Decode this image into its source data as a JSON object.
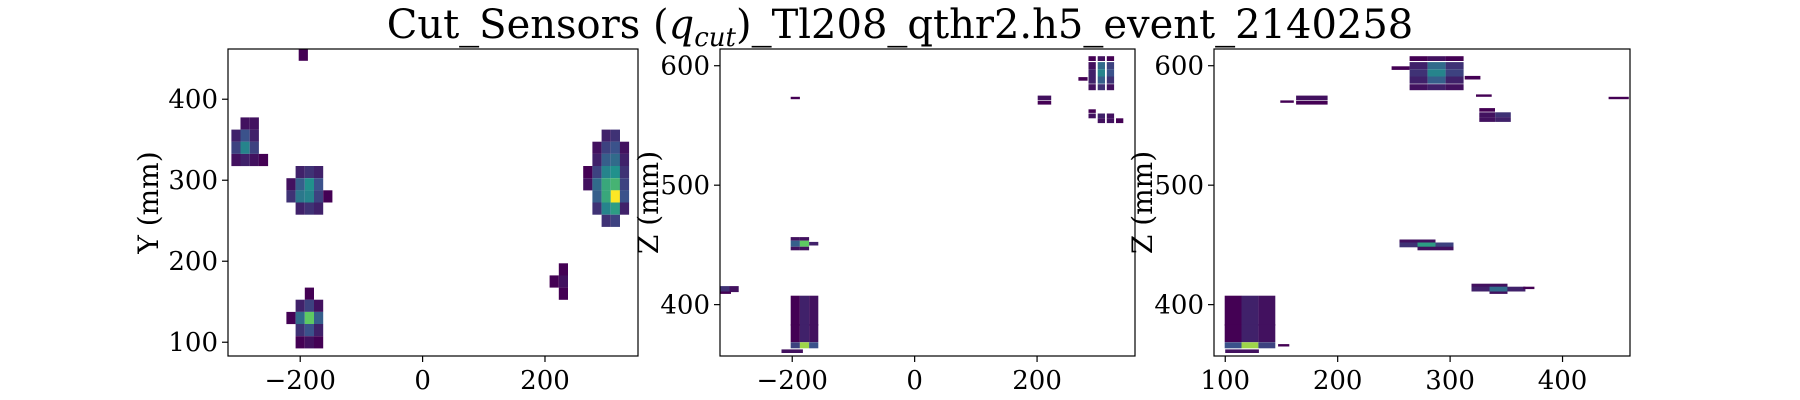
{
  "figure": {
    "title": "Cut_Sensors (q_cut)_Tl208_qthr2.h5_event_2140258",
    "title_parts": {
      "main_a": "Cut_Sensors (",
      "italic_q": "q",
      "sub_cut": "cut",
      "main_b": ")_Tl208_qthr2.h5_event_2140258"
    }
  },
  "colormap": [
    "#440154",
    "#3b528b",
    "#21918c",
    "#5ec962",
    "#fde725"
  ],
  "chart_data": [
    {
      "type": "heatmap",
      "xlabel": "",
      "ylabel": "Y (mm)",
      "xlim": [
        -318,
        352
      ],
      "ylim": [
        83,
        462
      ],
      "xticks": [
        -200,
        0,
        200
      ],
      "yticks": [
        100,
        200,
        300,
        400
      ],
      "cell_w": 15,
      "cell_h": 15,
      "cells": [
        {
          "x": -195,
          "y": 455,
          "v": 0.0
        },
        {
          "x": -290,
          "y": 370,
          "v": 0.05
        },
        {
          "x": -275,
          "y": 370,
          "v": 0.05
        },
        {
          "x": -305,
          "y": 355,
          "v": 0.1
        },
        {
          "x": -290,
          "y": 355,
          "v": 0.25
        },
        {
          "x": -275,
          "y": 355,
          "v": 0.1
        },
        {
          "x": -305,
          "y": 340,
          "v": 0.2
        },
        {
          "x": -290,
          "y": 340,
          "v": 0.45
        },
        {
          "x": -275,
          "y": 340,
          "v": 0.2
        },
        {
          "x": -305,
          "y": 325,
          "v": 0.05
        },
        {
          "x": -290,
          "y": 325,
          "v": 0.1
        },
        {
          "x": -275,
          "y": 325,
          "v": 0.05
        },
        {
          "x": -260,
          "y": 325,
          "v": 0.0
        },
        {
          "x": -200,
          "y": 310,
          "v": 0.1
        },
        {
          "x": -185,
          "y": 310,
          "v": 0.15
        },
        {
          "x": -170,
          "y": 310,
          "v": 0.1
        },
        {
          "x": -215,
          "y": 295,
          "v": 0.05
        },
        {
          "x": -200,
          "y": 295,
          "v": 0.3
        },
        {
          "x": -185,
          "y": 295,
          "v": 0.5
        },
        {
          "x": -170,
          "y": 295,
          "v": 0.25
        },
        {
          "x": -215,
          "y": 280,
          "v": 0.15
        },
        {
          "x": -200,
          "y": 280,
          "v": 0.4
        },
        {
          "x": -185,
          "y": 280,
          "v": 0.45
        },
        {
          "x": -170,
          "y": 280,
          "v": 0.2
        },
        {
          "x": -155,
          "y": 280,
          "v": 0.0
        },
        {
          "x": -200,
          "y": 265,
          "v": 0.1
        },
        {
          "x": -185,
          "y": 265,
          "v": 0.15
        },
        {
          "x": -170,
          "y": 265,
          "v": 0.1
        },
        {
          "x": -185,
          "y": 160,
          "v": 0.0
        },
        {
          "x": -200,
          "y": 145,
          "v": 0.1
        },
        {
          "x": -185,
          "y": 145,
          "v": 0.2
        },
        {
          "x": -170,
          "y": 145,
          "v": 0.05
        },
        {
          "x": -215,
          "y": 130,
          "v": 0.0
        },
        {
          "x": -200,
          "y": 130,
          "v": 0.35
        },
        {
          "x": -185,
          "y": 130,
          "v": 0.75
        },
        {
          "x": -170,
          "y": 130,
          "v": 0.3
        },
        {
          "x": -200,
          "y": 115,
          "v": 0.15
        },
        {
          "x": -185,
          "y": 115,
          "v": 0.25
        },
        {
          "x": -170,
          "y": 115,
          "v": 0.1
        },
        {
          "x": -200,
          "y": 100,
          "v": 0.0
        },
        {
          "x": -185,
          "y": 100,
          "v": 0.05
        },
        {
          "x": -170,
          "y": 100,
          "v": 0.0
        },
        {
          "x": 230,
          "y": 190,
          "v": 0.0
        },
        {
          "x": 230,
          "y": 175,
          "v": 0.05
        },
        {
          "x": 215,
          "y": 175,
          "v": 0.0
        },
        {
          "x": 230,
          "y": 160,
          "v": 0.0
        },
        {
          "x": 300,
          "y": 355,
          "v": 0.1
        },
        {
          "x": 315,
          "y": 355,
          "v": 0.15
        },
        {
          "x": 285,
          "y": 340,
          "v": 0.05
        },
        {
          "x": 300,
          "y": 340,
          "v": 0.2
        },
        {
          "x": 315,
          "y": 340,
          "v": 0.25
        },
        {
          "x": 330,
          "y": 340,
          "v": 0.05
        },
        {
          "x": 285,
          "y": 325,
          "v": 0.1
        },
        {
          "x": 300,
          "y": 325,
          "v": 0.3
        },
        {
          "x": 315,
          "y": 325,
          "v": 0.35
        },
        {
          "x": 330,
          "y": 325,
          "v": 0.1
        },
        {
          "x": 270,
          "y": 310,
          "v": 0.0
        },
        {
          "x": 285,
          "y": 310,
          "v": 0.2
        },
        {
          "x": 300,
          "y": 310,
          "v": 0.45
        },
        {
          "x": 315,
          "y": 310,
          "v": 0.5
        },
        {
          "x": 330,
          "y": 310,
          "v": 0.15
        },
        {
          "x": 270,
          "y": 295,
          "v": 0.05
        },
        {
          "x": 285,
          "y": 295,
          "v": 0.35
        },
        {
          "x": 300,
          "y": 295,
          "v": 0.6
        },
        {
          "x": 315,
          "y": 295,
          "v": 0.65
        },
        {
          "x": 330,
          "y": 295,
          "v": 0.2
        },
        {
          "x": 285,
          "y": 280,
          "v": 0.3
        },
        {
          "x": 300,
          "y": 280,
          "v": 0.6
        },
        {
          "x": 315,
          "y": 280,
          "v": 1.0
        },
        {
          "x": 330,
          "y": 280,
          "v": 0.25
        },
        {
          "x": 285,
          "y": 265,
          "v": 0.15
        },
        {
          "x": 300,
          "y": 265,
          "v": 0.45
        },
        {
          "x": 315,
          "y": 265,
          "v": 0.55
        },
        {
          "x": 330,
          "y": 265,
          "v": 0.1
        },
        {
          "x": 300,
          "y": 250,
          "v": 0.15
        },
        {
          "x": 315,
          "y": 250,
          "v": 0.2
        }
      ]
    },
    {
      "type": "heatmap",
      "xlabel": "",
      "ylabel": "Z (mm)",
      "xlim": [
        -318,
        360
      ],
      "ylim": [
        357,
        614
      ],
      "xticks": [
        -200,
        0,
        200
      ],
      "yticks": [
        400,
        500,
        600
      ],
      "cell_w": 15,
      "cell_h": 5,
      "cells": [
        {
          "x": -195,
          "y": 573,
          "v": 0.0,
          "w": 15,
          "h": 2
        },
        {
          "x": -310,
          "y": 413,
          "v": 0.15,
          "w": 15
        },
        {
          "x": -295,
          "y": 413,
          "v": 0.05,
          "w": 15
        },
        {
          "x": -310,
          "y": 410,
          "v": 0.0,
          "w": 20,
          "h": 2
        },
        {
          "x": -195,
          "y": 455,
          "v": 0.05,
          "w": 15,
          "h": 3
        },
        {
          "x": -180,
          "y": 455,
          "v": 0.05,
          "w": 15,
          "h": 3
        },
        {
          "x": -195,
          "y": 451,
          "v": 0.3,
          "w": 15,
          "h": 5
        },
        {
          "x": -180,
          "y": 451,
          "v": 0.75,
          "w": 15,
          "h": 5
        },
        {
          "x": -165,
          "y": 451,
          "v": 0.1,
          "w": 15,
          "h": 3
        },
        {
          "x": -195,
          "y": 447,
          "v": 0.05,
          "w": 15,
          "h": 3
        },
        {
          "x": -180,
          "y": 447,
          "v": 0.05,
          "w": 15,
          "h": 3
        },
        {
          "x": -195,
          "y": 395,
          "v": 0.0,
          "w": 15,
          "h": 25
        },
        {
          "x": -180,
          "y": 395,
          "v": 0.1,
          "w": 15,
          "h": 25
        },
        {
          "x": -165,
          "y": 395,
          "v": 0.05,
          "w": 15,
          "h": 25
        },
        {
          "x": -195,
          "y": 376,
          "v": 0.0,
          "w": 15,
          "h": 15
        },
        {
          "x": -180,
          "y": 376,
          "v": 0.1,
          "w": 15,
          "h": 15
        },
        {
          "x": -165,
          "y": 376,
          "v": 0.05,
          "w": 15,
          "h": 15
        },
        {
          "x": -195,
          "y": 366,
          "v": 0.2,
          "w": 15,
          "h": 5
        },
        {
          "x": -180,
          "y": 366,
          "v": 0.85,
          "w": 15,
          "h": 5
        },
        {
          "x": -165,
          "y": 366,
          "v": 0.25,
          "w": 15,
          "h": 5
        },
        {
          "x": -200,
          "y": 361,
          "v": 0.05,
          "w": 35,
          "h": 3
        },
        {
          "x": 212,
          "y": 573,
          "v": 0.05,
          "w": 22,
          "h": 4
        },
        {
          "x": 212,
          "y": 569,
          "v": 0.0,
          "w": 22,
          "h": 3
        },
        {
          "x": 290,
          "y": 606,
          "v": 0.0,
          "w": 12,
          "h": 4
        },
        {
          "x": 305,
          "y": 606,
          "v": 0.05,
          "w": 12,
          "h": 4
        },
        {
          "x": 320,
          "y": 606,
          "v": 0.0,
          "w": 12,
          "h": 4
        },
        {
          "x": 290,
          "y": 600,
          "v": 0.05,
          "w": 12,
          "h": 6
        },
        {
          "x": 305,
          "y": 600,
          "v": 0.35,
          "w": 12,
          "h": 6
        },
        {
          "x": 320,
          "y": 600,
          "v": 0.2,
          "w": 12,
          "h": 6
        },
        {
          "x": 290,
          "y": 594,
          "v": 0.1,
          "w": 12,
          "h": 6
        },
        {
          "x": 305,
          "y": 594,
          "v": 0.45,
          "w": 12,
          "h": 6
        },
        {
          "x": 320,
          "y": 594,
          "v": 0.25,
          "w": 12,
          "h": 6
        },
        {
          "x": 275,
          "y": 589,
          "v": 0.0,
          "w": 15,
          "h": 3
        },
        {
          "x": 290,
          "y": 588,
          "v": 0.1,
          "w": 12,
          "h": 6
        },
        {
          "x": 305,
          "y": 588,
          "v": 0.3,
          "w": 12,
          "h": 6
        },
        {
          "x": 320,
          "y": 588,
          "v": 0.15,
          "w": 12,
          "h": 6
        },
        {
          "x": 290,
          "y": 582,
          "v": 0.05,
          "w": 12,
          "h": 5
        },
        {
          "x": 305,
          "y": 582,
          "v": 0.15,
          "w": 12,
          "h": 5
        },
        {
          "x": 320,
          "y": 582,
          "v": 0.05,
          "w": 12,
          "h": 5
        },
        {
          "x": 290,
          "y": 562,
          "v": 0.0,
          "w": 12,
          "h": 3
        },
        {
          "x": 290,
          "y": 558,
          "v": 0.05,
          "w": 12,
          "h": 4
        },
        {
          "x": 305,
          "y": 558,
          "v": 0.1,
          "w": 12,
          "h": 4
        },
        {
          "x": 320,
          "y": 558,
          "v": 0.05,
          "w": 12,
          "h": 4
        },
        {
          "x": 305,
          "y": 554,
          "v": 0.05,
          "w": 12,
          "h": 4
        },
        {
          "x": 320,
          "y": 554,
          "v": 0.05,
          "w": 12,
          "h": 4
        },
        {
          "x": 335,
          "y": 554,
          "v": 0.0,
          "w": 12,
          "h": 4
        }
      ]
    },
    {
      "type": "heatmap",
      "xlabel": "",
      "ylabel": "Z (mm)",
      "xlim": [
        90,
        460
      ],
      "ylim": [
        357,
        614
      ],
      "xticks": [
        100,
        200,
        300,
        400
      ],
      "yticks": [
        400,
        500,
        600
      ],
      "cell_w": 15,
      "cell_h": 5,
      "cells": [
        {
          "x": 107,
          "y": 395,
          "v": 0.0,
          "w": 15,
          "h": 25
        },
        {
          "x": 122,
          "y": 395,
          "v": 0.1,
          "w": 15,
          "h": 25
        },
        {
          "x": 137,
          "y": 395,
          "v": 0.05,
          "w": 15,
          "h": 25
        },
        {
          "x": 107,
          "y": 376,
          "v": 0.0,
          "w": 15,
          "h": 15
        },
        {
          "x": 122,
          "y": 376,
          "v": 0.1,
          "w": 15,
          "h": 15
        },
        {
          "x": 137,
          "y": 376,
          "v": 0.05,
          "w": 15,
          "h": 15
        },
        {
          "x": 107,
          "y": 366,
          "v": 0.25,
          "w": 15,
          "h": 5
        },
        {
          "x": 122,
          "y": 366,
          "v": 0.85,
          "w": 15,
          "h": 5
        },
        {
          "x": 137,
          "y": 366,
          "v": 0.2,
          "w": 15,
          "h": 5
        },
        {
          "x": 152,
          "y": 366,
          "v": 0.0,
          "w": 10,
          "h": 2
        },
        {
          "x": 115,
          "y": 361,
          "v": 0.05,
          "w": 30,
          "h": 3
        },
        {
          "x": 177,
          "y": 573,
          "v": 0.05,
          "w": 28,
          "h": 4
        },
        {
          "x": 177,
          "y": 569,
          "v": 0.0,
          "w": 28,
          "h": 3
        },
        {
          "x": 155,
          "y": 570,
          "v": 0.0,
          "w": 12,
          "h": 2
        },
        {
          "x": 450,
          "y": 573,
          "v": 0.0,
          "w": 18,
          "h": 2
        },
        {
          "x": 272,
          "y": 606,
          "v": 0.0,
          "w": 16,
          "h": 4
        },
        {
          "x": 288,
          "y": 606,
          "v": 0.05,
          "w": 16,
          "h": 4
        },
        {
          "x": 304,
          "y": 606,
          "v": 0.0,
          "w": 16,
          "h": 4
        },
        {
          "x": 272,
          "y": 600,
          "v": 0.1,
          "w": 16,
          "h": 6
        },
        {
          "x": 288,
          "y": 600,
          "v": 0.35,
          "w": 16,
          "h": 6
        },
        {
          "x": 304,
          "y": 600,
          "v": 0.15,
          "w": 16,
          "h": 6
        },
        {
          "x": 272,
          "y": 594,
          "v": 0.15,
          "w": 16,
          "h": 6
        },
        {
          "x": 288,
          "y": 594,
          "v": 0.45,
          "w": 16,
          "h": 6
        },
        {
          "x": 304,
          "y": 594,
          "v": 0.2,
          "w": 16,
          "h": 6
        },
        {
          "x": 256,
          "y": 598,
          "v": 0.0,
          "w": 16,
          "h": 3
        },
        {
          "x": 272,
          "y": 588,
          "v": 0.1,
          "w": 16,
          "h": 6
        },
        {
          "x": 288,
          "y": 588,
          "v": 0.3,
          "w": 16,
          "h": 6
        },
        {
          "x": 304,
          "y": 588,
          "v": 0.1,
          "w": 16,
          "h": 6
        },
        {
          "x": 272,
          "y": 582,
          "v": 0.05,
          "w": 16,
          "h": 5
        },
        {
          "x": 288,
          "y": 582,
          "v": 0.1,
          "w": 16,
          "h": 5
        },
        {
          "x": 304,
          "y": 582,
          "v": 0.05,
          "w": 16,
          "h": 5
        },
        {
          "x": 320,
          "y": 590,
          "v": 0.0,
          "w": 14,
          "h": 3
        },
        {
          "x": 330,
          "y": 575,
          "v": 0.0,
          "w": 14,
          "h": 2
        },
        {
          "x": 333,
          "y": 563,
          "v": 0.0,
          "w": 14,
          "h": 3
        },
        {
          "x": 333,
          "y": 559,
          "v": 0.05,
          "w": 14,
          "h": 4
        },
        {
          "x": 347,
          "y": 559,
          "v": 0.15,
          "w": 14,
          "h": 4
        },
        {
          "x": 333,
          "y": 555,
          "v": 0.05,
          "w": 14,
          "h": 4
        },
        {
          "x": 347,
          "y": 555,
          "v": 0.1,
          "w": 14,
          "h": 4
        },
        {
          "x": 263,
          "y": 453,
          "v": 0.05,
          "w": 16,
          "h": 3
        },
        {
          "x": 279,
          "y": 453,
          "v": 0.05,
          "w": 16,
          "h": 3
        },
        {
          "x": 263,
          "y": 450,
          "v": 0.15,
          "w": 16,
          "h": 4
        },
        {
          "x": 279,
          "y": 450,
          "v": 0.55,
          "w": 16,
          "h": 4
        },
        {
          "x": 295,
          "y": 450,
          "v": 0.2,
          "w": 16,
          "h": 4
        },
        {
          "x": 279,
          "y": 447,
          "v": 0.05,
          "w": 16,
          "h": 3
        },
        {
          "x": 295,
          "y": 447,
          "v": 0.05,
          "w": 16,
          "h": 3
        },
        {
          "x": 327,
          "y": 416,
          "v": 0.05,
          "w": 16,
          "h": 3
        },
        {
          "x": 343,
          "y": 416,
          "v": 0.05,
          "w": 16,
          "h": 3
        },
        {
          "x": 327,
          "y": 413,
          "v": 0.1,
          "w": 16,
          "h": 4
        },
        {
          "x": 343,
          "y": 413,
          "v": 0.35,
          "w": 16,
          "h": 4
        },
        {
          "x": 359,
          "y": 413,
          "v": 0.1,
          "w": 16,
          "h": 4
        },
        {
          "x": 343,
          "y": 410,
          "v": 0.05,
          "w": 16,
          "h": 2
        },
        {
          "x": 370,
          "y": 414,
          "v": 0.0,
          "w": 10,
          "h": 2
        }
      ]
    }
  ]
}
